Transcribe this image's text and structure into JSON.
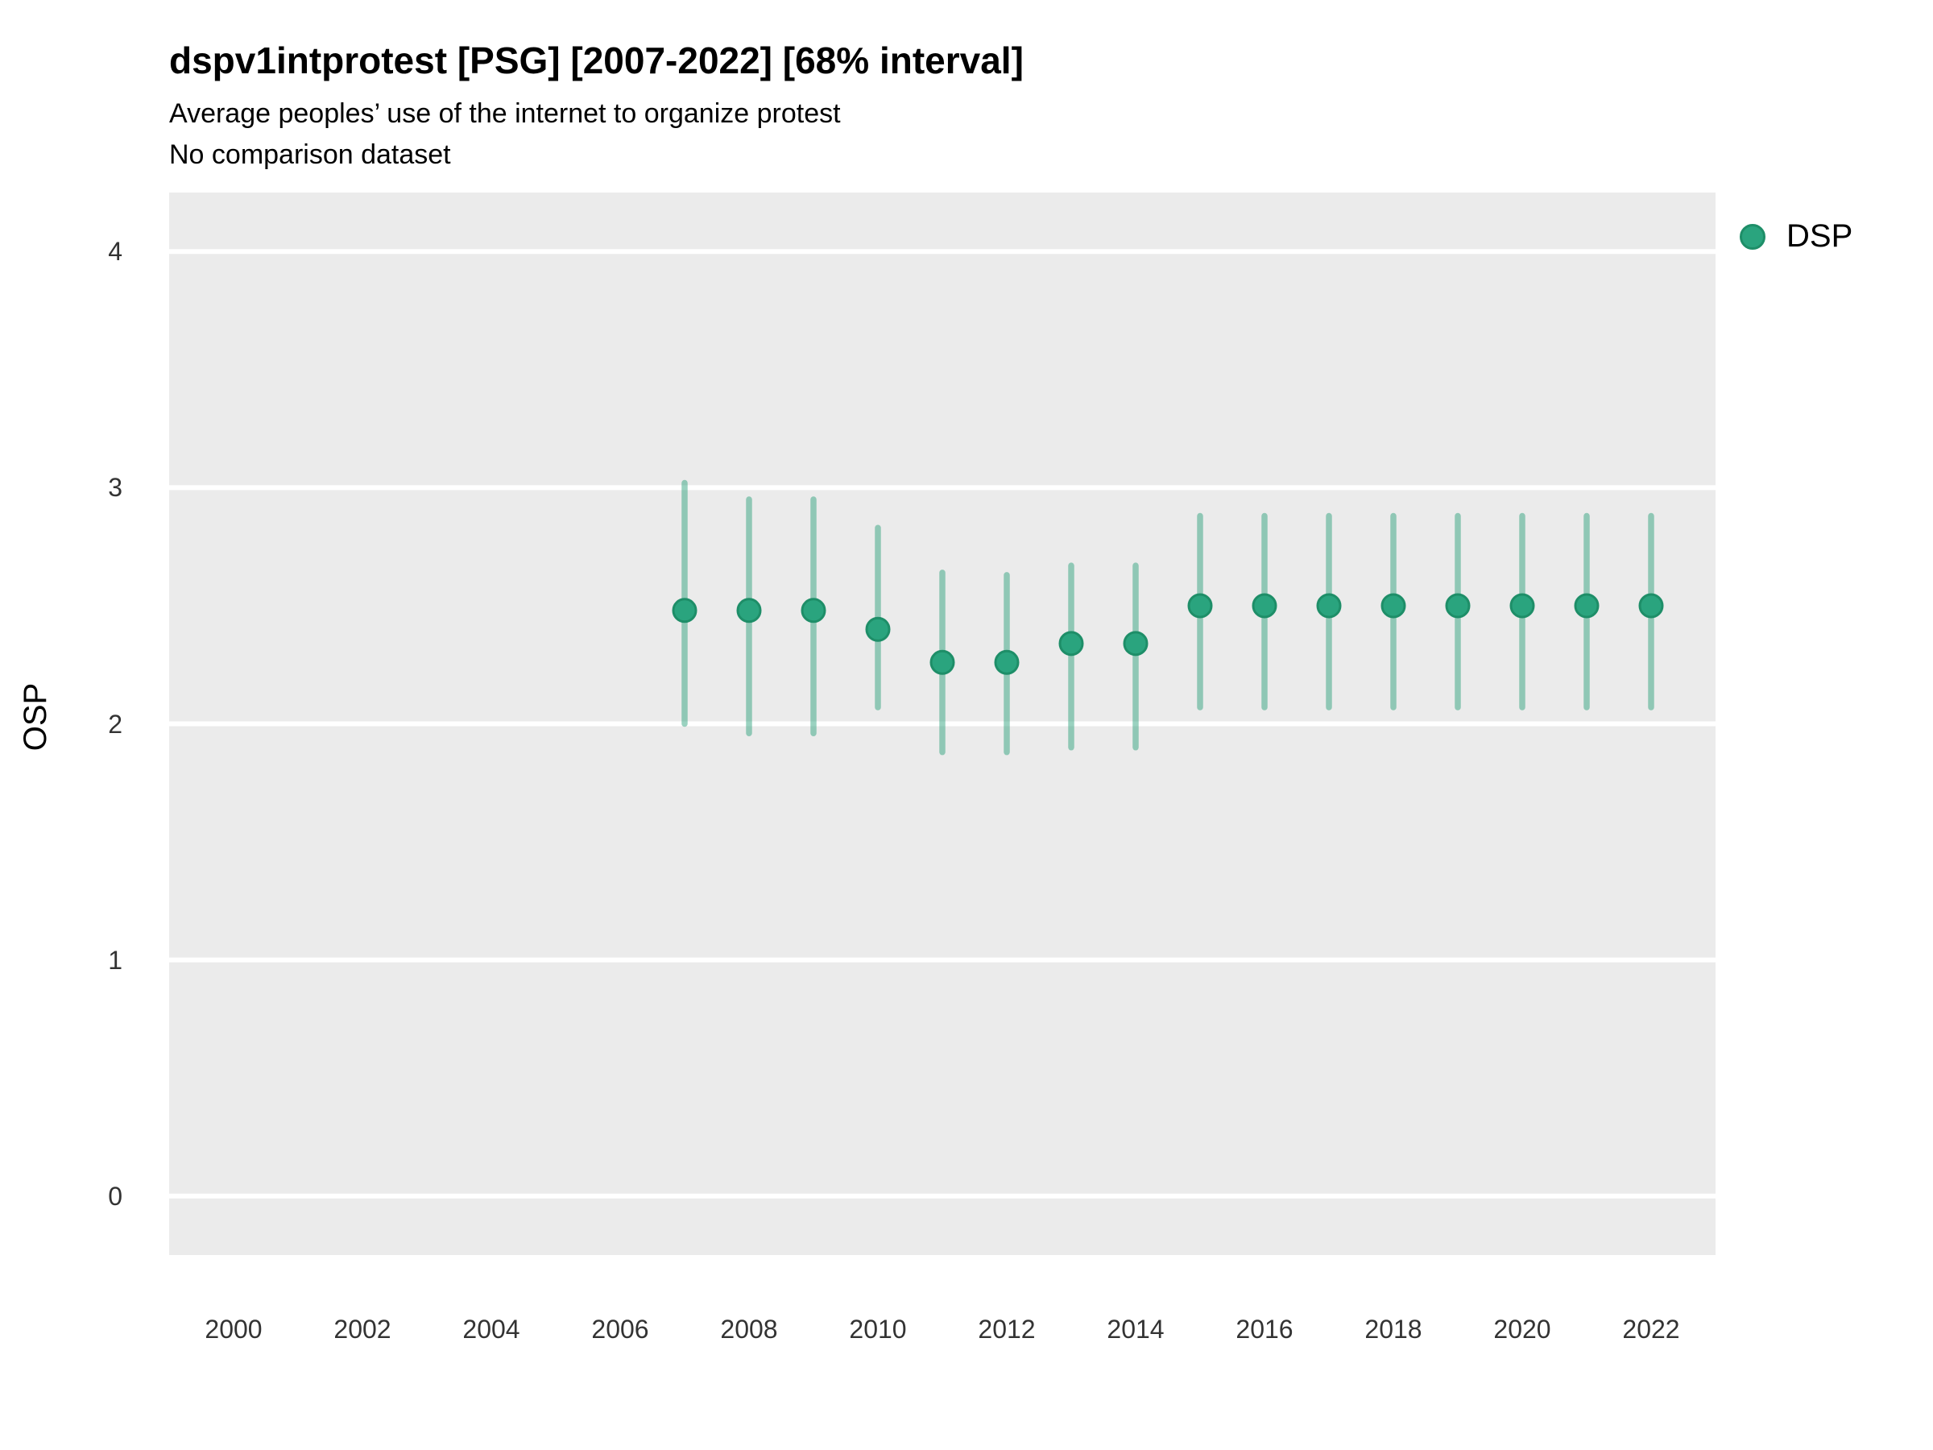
{
  "header": {
    "title": "dspv1intprotest [PSG] [2007-2022] [68% interval]",
    "subtitle": "Average peoples’ use of the internet to organize protest",
    "note": "No comparison dataset"
  },
  "chart_data": {
    "type": "scatter",
    "title": "dspv1intprotest [PSG] [2007-2022] [68% interval]",
    "subtitle": "Average peoples’ use of the internet to organize protest",
    "note": "No comparison dataset",
    "xlabel": "",
    "ylabel": "OSP",
    "interval": "68%",
    "xlim": [
      1999,
      2023
    ],
    "ylim": [
      -0.25,
      4.25
    ],
    "xticks": [
      2000,
      2002,
      2004,
      2006,
      2008,
      2010,
      2012,
      2014,
      2016,
      2018,
      2020,
      2022
    ],
    "yticks": [
      0,
      1,
      2,
      3,
      4
    ],
    "grid": "horizontal-only",
    "legend_position": "right",
    "series": [
      {
        "name": "DSP",
        "points": [
          {
            "year": 2007,
            "value": 2.48,
            "lo": 2.0,
            "hi": 3.02
          },
          {
            "year": 2008,
            "value": 2.48,
            "lo": 1.96,
            "hi": 2.95
          },
          {
            "year": 2009,
            "value": 2.48,
            "lo": 1.96,
            "hi": 2.95
          },
          {
            "year": 2010,
            "value": 2.4,
            "lo": 2.07,
            "hi": 2.83
          },
          {
            "year": 2011,
            "value": 2.26,
            "lo": 1.88,
            "hi": 2.64
          },
          {
            "year": 2012,
            "value": 2.26,
            "lo": 1.88,
            "hi": 2.63
          },
          {
            "year": 2013,
            "value": 2.34,
            "lo": 1.9,
            "hi": 2.67
          },
          {
            "year": 2014,
            "value": 2.34,
            "lo": 1.9,
            "hi": 2.67
          },
          {
            "year": 2015,
            "value": 2.5,
            "lo": 2.07,
            "hi": 2.88
          },
          {
            "year": 2016,
            "value": 2.5,
            "lo": 2.07,
            "hi": 2.88
          },
          {
            "year": 2017,
            "value": 2.5,
            "lo": 2.07,
            "hi": 2.88
          },
          {
            "year": 2018,
            "value": 2.5,
            "lo": 2.07,
            "hi": 2.88
          },
          {
            "year": 2019,
            "value": 2.5,
            "lo": 2.07,
            "hi": 2.88
          },
          {
            "year": 2020,
            "value": 2.5,
            "lo": 2.07,
            "hi": 2.88
          },
          {
            "year": 2021,
            "value": 2.5,
            "lo": 2.07,
            "hi": 2.88
          },
          {
            "year": 2022,
            "value": 2.5,
            "lo": 2.07,
            "hi": 2.88
          }
        ]
      }
    ]
  },
  "colors": {
    "point_fill": "#2aa47e",
    "point_stroke": "#1e8e68",
    "errorbar": "rgba(30,155,115,0.45)",
    "panel_bg": "#ebebeb",
    "gridline": "#ffffff",
    "tick_label": "#333333"
  }
}
